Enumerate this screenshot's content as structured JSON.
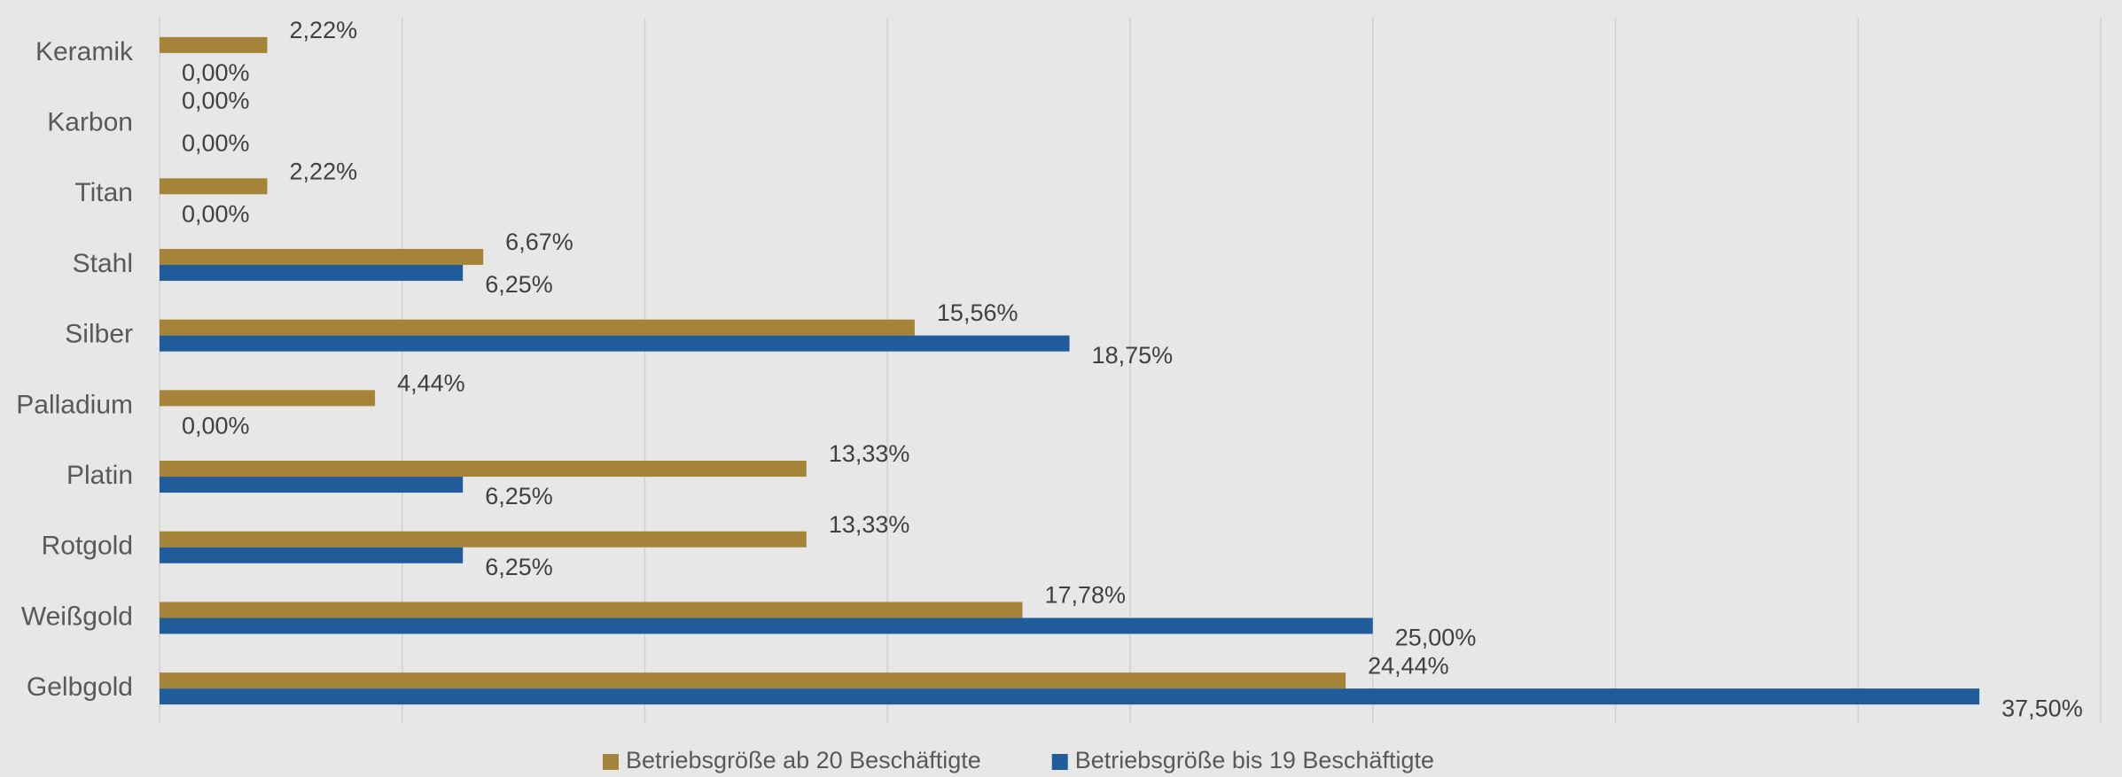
{
  "chart_data": {
    "type": "hbar",
    "categories": [
      "Keramik",
      "Karbon",
      "Titan",
      "Stahl",
      "Silber",
      "Palladium",
      "Platin",
      "Rotgold",
      "Weißgold",
      "Gelbgold"
    ],
    "series": [
      {
        "name": "Betriebsgröße ab 20 Beschäftigte",
        "color": "#a5843a",
        "values": [
          2.22,
          0,
          2.22,
          6.67,
          15.56,
          4.44,
          13.33,
          13.33,
          17.78,
          24.44
        ],
        "value_labels": [
          "2,22%",
          "0,00%",
          "2,22%",
          "6,67%",
          "15,56%",
          "4,44%",
          "13,33%",
          "13,33%",
          "17,78%",
          "24,44%"
        ]
      },
      {
        "name": "Betriebsgröße bis 19 Beschäftigte",
        "color": "#1f5c99",
        "values": [
          0,
          0,
          0,
          6.25,
          18.75,
          0,
          6.25,
          6.25,
          25.0,
          37.5
        ],
        "value_labels": [
          "0,00%",
          "0,00%",
          "0,00%",
          "6,25%",
          "18,75%",
          "0,00%",
          "6,25%",
          "6,25%",
          "25,00%",
          "37,50%"
        ]
      }
    ],
    "xlim": [
      0,
      40
    ],
    "xticks": [
      0,
      5,
      10,
      15,
      20,
      25,
      30,
      35,
      40
    ],
    "grid": true,
    "legend": "bottom"
  }
}
